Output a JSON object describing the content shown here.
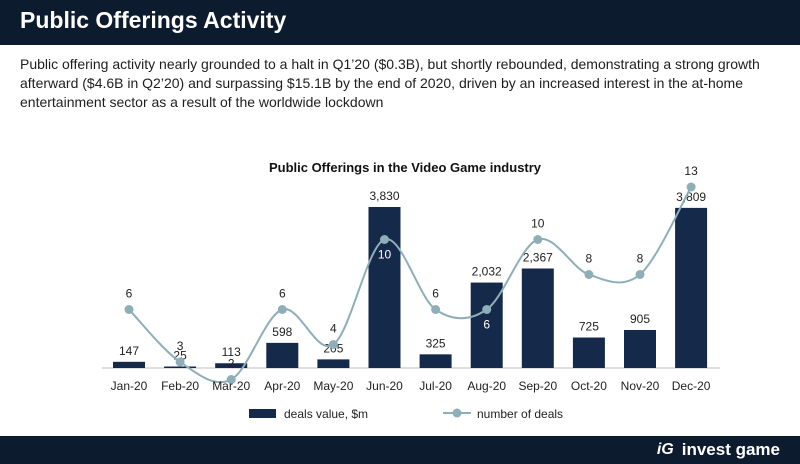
{
  "header": {
    "title": "Public Offerings Activity"
  },
  "intro": "Public offering activity nearly grounded to a halt in Q1’20 ($0.3B), but shortly rebounded, demonstrating a strong growth afterward ($4.6B in Q2’20) and surpassing $15.1B by the end of 2020, driven by an increased interest in the at-home entertainment sector as a result of the worldwide lockdown",
  "chart_data": {
    "type": "bar+line",
    "title": "Public Offerings in the Video Game industry",
    "categories": [
      "Jan-20",
      "Feb-20",
      "Mar-20",
      "Apr-20",
      "May-20",
      "Jun-20",
      "Jul-20",
      "Aug-20",
      "Sep-20",
      "Oct-20",
      "Nov-20",
      "Dec-20"
    ],
    "series": [
      {
        "name": "deals value, $m",
        "type": "bar",
        "values": [
          147,
          25,
          113,
          598,
          205,
          3830,
          325,
          2032,
          2367,
          725,
          905,
          3809
        ],
        "labels": [
          "147",
          "25",
          "113",
          "598",
          "205",
          "3,830",
          "325",
          "2,032",
          "2,367",
          "725",
          "905",
          "3,809"
        ]
      },
      {
        "name": "number of deals",
        "type": "line",
        "values": [
          6,
          3,
          2,
          6,
          4,
          10,
          6,
          6,
          10,
          8,
          8,
          13
        ]
      }
    ],
    "legend_position": "bottom",
    "colors": {
      "bar": "#15294a",
      "line": "#8eaeb8"
    }
  },
  "footer": {
    "brand_mark": "iG",
    "brand_name": "invest game"
  }
}
